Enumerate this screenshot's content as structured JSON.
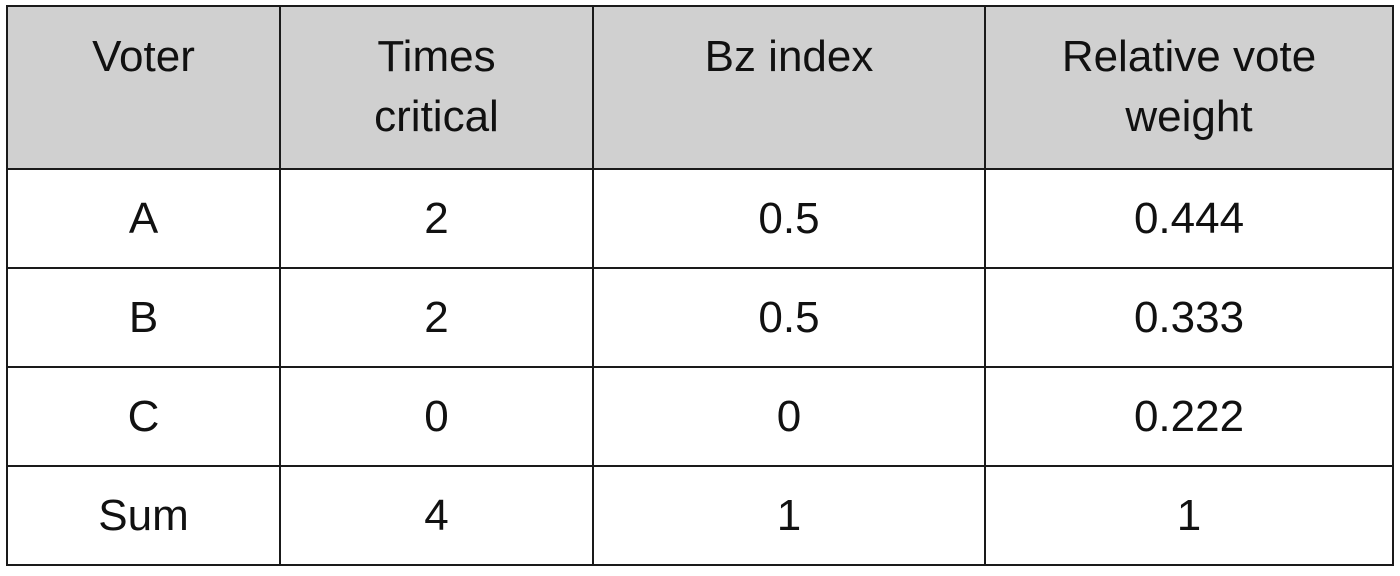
{
  "table": {
    "headers": [
      "Voter",
      "Times critical",
      "Bz index",
      "Relative vote weight"
    ],
    "header_lines": [
      [
        "Voter"
      ],
      [
        "Times",
        "critical"
      ],
      [
        "Bz index"
      ],
      [
        "Relative vote",
        "weight"
      ]
    ],
    "rows": [
      [
        "A",
        "2",
        "0.5",
        "0.444"
      ],
      [
        "B",
        "2",
        "0.5",
        "0.333"
      ],
      [
        "C",
        "0",
        "0",
        "0.222"
      ],
      [
        "Sum",
        "4",
        "1",
        "1"
      ]
    ]
  },
  "colors": {
    "header_background": "#d0d0d0",
    "border": "#1a1a1a",
    "text": "#111111"
  }
}
